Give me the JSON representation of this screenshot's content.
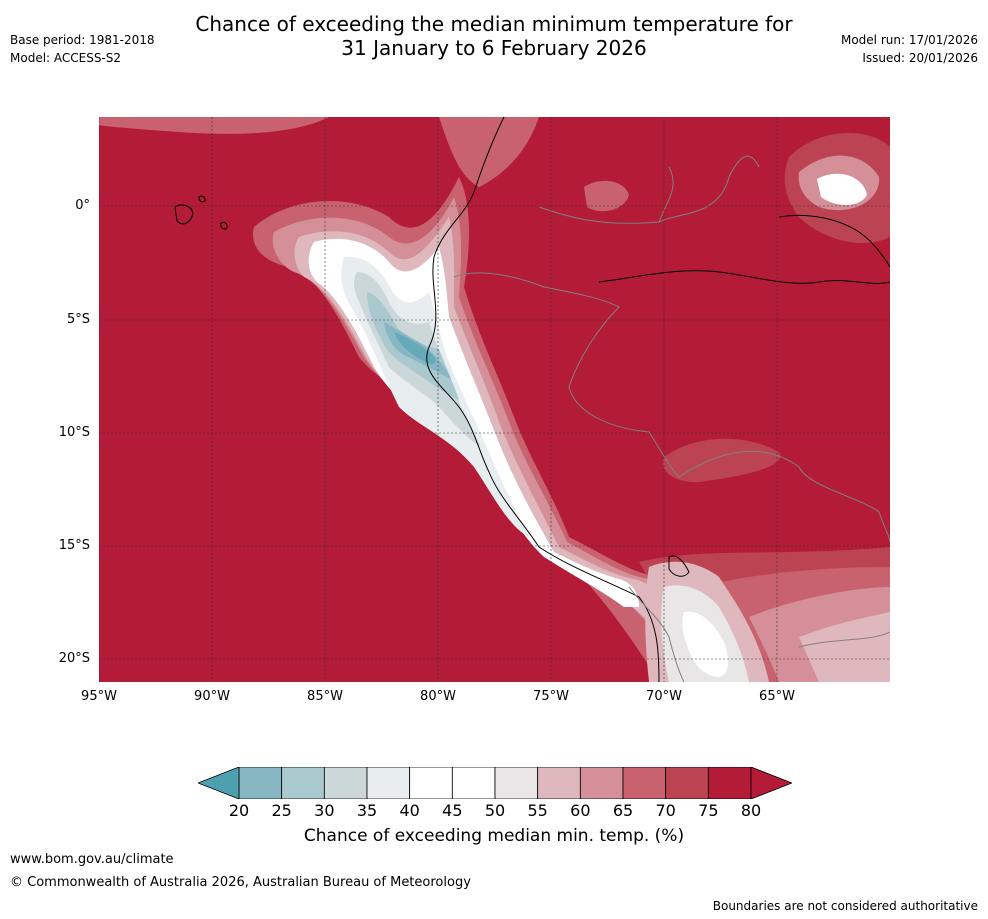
{
  "header": {
    "title_line1": "Chance of exceeding the median minimum temperature for",
    "title_line2": "31 January to 6 February 2026",
    "base_period": "Base period: 1981-2018",
    "model": "Model: ACCESS-S2",
    "model_run": "Model run: 17/01/2026",
    "issued": "Issued: 20/01/2026"
  },
  "map": {
    "latitude_labels": [
      "0°",
      "5°S",
      "10°S",
      "15°S",
      "20°S"
    ],
    "longitude_labels": [
      "95°W",
      "90°W",
      "85°W",
      "80°W",
      "75°W",
      "70°W",
      "65°W"
    ],
    "region": "Western South America and eastern Pacific"
  },
  "legend": {
    "title": "Chance of exceeding median min. temp. (%)",
    "ticks": [
      "20",
      "25",
      "30",
      "35",
      "40",
      "45",
      "50",
      "55",
      "60",
      "65",
      "70",
      "75",
      "80"
    ],
    "colors": [
      "#66a9b8",
      "#87b7c2",
      "#a9c9cf",
      "#cbd7d9",
      "#e8eef0",
      "#ffffff",
      "#ffffff",
      "#e8e6e6",
      "#dfb8bd",
      "#d48f98",
      "#c8626e",
      "#bc4452",
      "#b31b37"
    ],
    "underflow_color": "#4da0b0",
    "overflow_color": "#b31b37"
  },
  "footer": {
    "website": "www.bom.gov.au/climate",
    "copyright": "© Commonwealth of Australia 2026, Australian Bureau of Meteorology",
    "disclaimer": "Boundaries are not considered authoritative"
  }
}
